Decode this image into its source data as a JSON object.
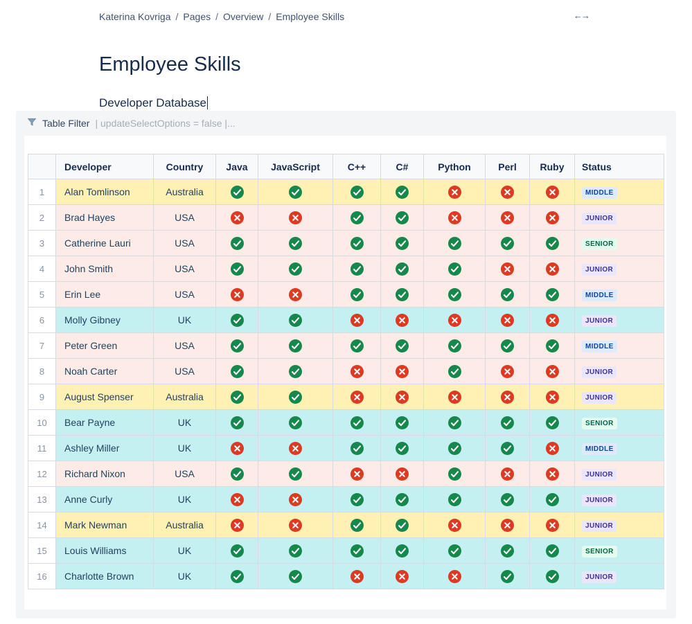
{
  "breadcrumb": {
    "items": [
      "Katerina Kovriga",
      "Pages",
      "Overview",
      "Employee Skills"
    ],
    "separator": "/"
  },
  "header_icons": {
    "resize_icon": "←→"
  },
  "page": {
    "title": "Employee Skills",
    "subtitle": "Developer Database"
  },
  "macro": {
    "name": "Table Filter",
    "params": "| updateSelectOptions = false |..."
  },
  "table": {
    "columns": [
      "",
      "Developer",
      "Country",
      "Java",
      "JavaScript",
      "C++",
      "C#",
      "Python",
      "Perl",
      "Ruby",
      "Status"
    ],
    "skill_columns": [
      "Java",
      "JavaScript",
      "C++",
      "C#",
      "Python",
      "Perl",
      "Ruby"
    ],
    "rows": [
      {
        "num": 1,
        "developer": "Alan Tomlinson",
        "country": "Australia",
        "skills": [
          true,
          true,
          true,
          true,
          false,
          false,
          false
        ],
        "status": "MIDDLE"
      },
      {
        "num": 2,
        "developer": "Brad Hayes",
        "country": "USA",
        "skills": [
          false,
          false,
          true,
          true,
          false,
          false,
          false
        ],
        "status": "JUNIOR"
      },
      {
        "num": 3,
        "developer": "Catherine Lauri",
        "country": "USA",
        "skills": [
          true,
          true,
          true,
          true,
          true,
          true,
          true
        ],
        "status": "SENIOR"
      },
      {
        "num": 4,
        "developer": "John Smith",
        "country": "USA",
        "skills": [
          true,
          true,
          true,
          true,
          true,
          false,
          false
        ],
        "status": "JUNIOR"
      },
      {
        "num": 5,
        "developer": "Erin Lee",
        "country": "USA",
        "skills": [
          false,
          false,
          true,
          true,
          true,
          true,
          true
        ],
        "status": "MIDDLE"
      },
      {
        "num": 6,
        "developer": "Molly Gibney",
        "country": "UK",
        "skills": [
          true,
          true,
          false,
          false,
          false,
          false,
          false
        ],
        "status": "JUNIOR"
      },
      {
        "num": 7,
        "developer": "Peter Green",
        "country": "USA",
        "skills": [
          true,
          true,
          true,
          true,
          true,
          true,
          true
        ],
        "status": "MIDDLE"
      },
      {
        "num": 8,
        "developer": "Noah Carter",
        "country": "USA",
        "skills": [
          true,
          true,
          false,
          false,
          true,
          false,
          false
        ],
        "status": "JUNIOR"
      },
      {
        "num": 9,
        "developer": "August Spenser",
        "country": "Australia",
        "skills": [
          true,
          true,
          false,
          false,
          false,
          false,
          false
        ],
        "status": "JUNIOR"
      },
      {
        "num": 10,
        "developer": "Bear Payne",
        "country": "UK",
        "skills": [
          true,
          true,
          true,
          true,
          true,
          true,
          true
        ],
        "status": "SENIOR"
      },
      {
        "num": 11,
        "developer": "Ashley Miller",
        "country": "UK",
        "skills": [
          false,
          false,
          true,
          true,
          true,
          true,
          false
        ],
        "status": "MIDDLE"
      },
      {
        "num": 12,
        "developer": "Richard Nixon",
        "country": "USA",
        "skills": [
          true,
          true,
          false,
          false,
          true,
          false,
          false
        ],
        "status": "JUNIOR"
      },
      {
        "num": 13,
        "developer": "Anne Curly",
        "country": "UK",
        "skills": [
          false,
          false,
          true,
          true,
          true,
          true,
          true
        ],
        "status": "JUNIOR"
      },
      {
        "num": 14,
        "developer": "Mark Newman",
        "country": "Australia",
        "skills": [
          false,
          false,
          true,
          true,
          false,
          false,
          false
        ],
        "status": "JUNIOR"
      },
      {
        "num": 15,
        "developer": "Louis Williams",
        "country": "UK",
        "skills": [
          true,
          true,
          true,
          true,
          true,
          true,
          true
        ],
        "status": "SENIOR"
      },
      {
        "num": 16,
        "developer": "Charlotte Brown",
        "country": "UK",
        "skills": [
          true,
          true,
          false,
          false,
          false,
          true,
          true
        ],
        "status": "JUNIOR"
      }
    ]
  },
  "colors": {
    "country_row_bg": {
      "Australia": "#fff0b3",
      "USA": "#fcebe6",
      "UK": "#c4f0f2"
    },
    "status_styles": {
      "MIDDLE": {
        "bg": "#deebff",
        "text": "#0747a6"
      },
      "JUNIOR": {
        "bg": "#eae6ff",
        "text": "#403294"
      },
      "SENIOR": {
        "bg": "#e3fcef",
        "text": "#006644"
      }
    },
    "check": "#17884d",
    "cross": "#dc3a22"
  }
}
